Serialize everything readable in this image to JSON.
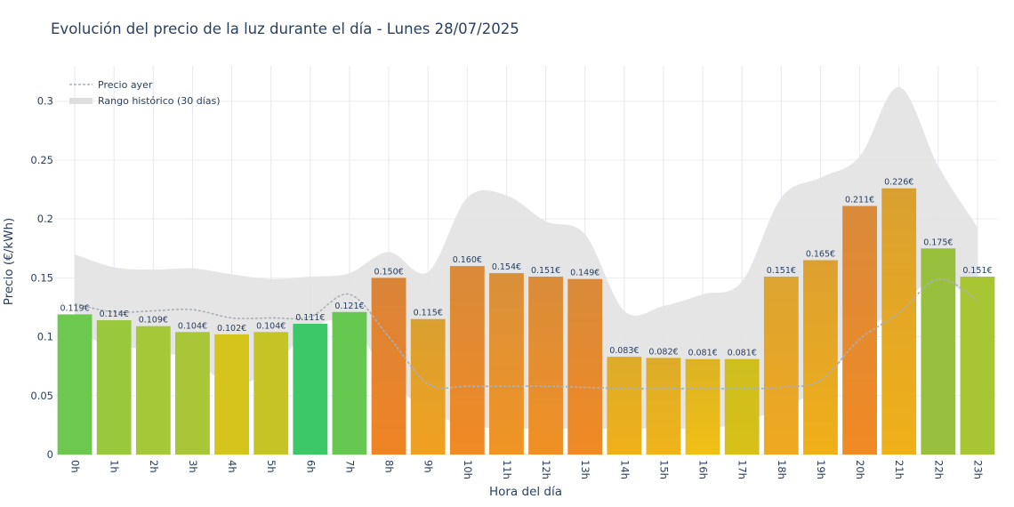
{
  "chart_data": {
    "type": "bar",
    "title": "Evolución del precio de la luz durante el día - Lunes 28/07/2025",
    "xlabel": "Hora del día",
    "ylabel": "Precio (€/kWh)",
    "ylim": [
      0,
      0.33
    ],
    "yticks": [
      "0",
      "0.05",
      "0.1",
      "0.15",
      "0.2",
      "0.25",
      "0.3"
    ],
    "ytick_values": [
      0,
      0.05,
      0.1,
      0.15,
      0.2,
      0.25,
      0.3
    ],
    "grid": true,
    "legend_position": "top-left",
    "categories": [
      "0h",
      "1h",
      "2h",
      "3h",
      "4h",
      "5h",
      "6h",
      "7h",
      "8h",
      "9h",
      "10h",
      "11h",
      "12h",
      "13h",
      "14h",
      "15h",
      "16h",
      "17h",
      "18h",
      "19h",
      "20h",
      "21h",
      "22h",
      "23h"
    ],
    "series": [
      {
        "values": [
          0.119,
          0.114,
          0.109,
          0.104,
          0.102,
          0.104,
          0.111,
          0.121,
          0.15,
          0.115,
          0.16,
          0.154,
          0.151,
          0.149,
          0.083,
          0.082,
          0.081,
          0.081,
          0.151,
          0.165,
          0.211,
          0.226,
          0.175,
          0.151
        ],
        "labels": [
          "0.119€",
          "0.114€",
          "0.109€",
          "0.104€",
          "0.102€",
          "0.104€",
          "0.111€",
          "0.121€",
          "0.150€",
          "0.115€",
          "0.160€",
          "0.154€",
          "0.151€",
          "0.149€",
          "0.083€",
          "0.082€",
          "0.081€",
          "0.081€",
          "0.151€",
          "0.165€",
          "0.211€",
          "0.226€",
          "0.175€",
          "0.151€"
        ],
        "colors_top": [
          "#6cc84e",
          "#99c83c",
          "#a4c838",
          "#a8c638",
          "#d4c41c",
          "#c4c426",
          "#3cc868",
          "#66c850",
          "#d98438",
          "#d9a030",
          "#d98a3a",
          "#d9903a",
          "#d98c3a",
          "#d98a3a",
          "#dcac2a",
          "#dcac28",
          "#dcb224",
          "#cdbe1e",
          "#dca430",
          "#dca030",
          "#d98a3a",
          "#d9a030",
          "#98c03c",
          "#a8c634"
        ],
        "colors_bottom": [
          "#6cc84e",
          "#99c83c",
          "#a4c838",
          "#a8c638",
          "#d4c41c",
          "#c4c426",
          "#3cc868",
          "#66c850",
          "#f08424",
          "#f0a020",
          "#f08a24",
          "#f09424",
          "#f09024",
          "#f08a24",
          "#f0b018",
          "#f0b41a",
          "#f0c014",
          "#d8c018",
          "#f0a820",
          "#f0b018",
          "#f08a24",
          "#f0b018",
          "#98c03c",
          "#a8c634"
        ]
      },
      {
        "name": "Precio ayer",
        "type": "line",
        "color": "#aab0b8",
        "values": [
          0.128,
          0.121,
          0.122,
          0.123,
          0.116,
          0.116,
          0.117,
          0.136,
          0.1,
          0.06,
          0.058,
          0.058,
          0.058,
          0.057,
          0.056,
          0.056,
          0.056,
          0.056,
          0.057,
          0.063,
          0.098,
          0.12,
          0.149,
          0.131
        ]
      },
      {
        "name": "Rango histórico (30 días)",
        "type": "area",
        "color": "#e3e3e3",
        "upper": [
          0.17,
          0.159,
          0.157,
          0.158,
          0.153,
          0.149,
          0.151,
          0.154,
          0.172,
          0.155,
          0.218,
          0.22,
          0.198,
          0.187,
          0.122,
          0.126,
          0.136,
          0.147,
          0.218,
          0.235,
          0.253,
          0.312,
          0.245,
          0.193
        ],
        "lower": [
          0.102,
          0.093,
          0.088,
          0.08,
          0.059,
          0.073,
          0.106,
          0.112,
          0.065,
          0.037,
          0.025,
          0.022,
          0.022,
          0.022,
          0.022,
          0.022,
          0.022,
          0.027,
          0.04,
          0.057,
          0.1,
          0.125,
          0.15,
          0.125
        ]
      }
    ]
  }
}
